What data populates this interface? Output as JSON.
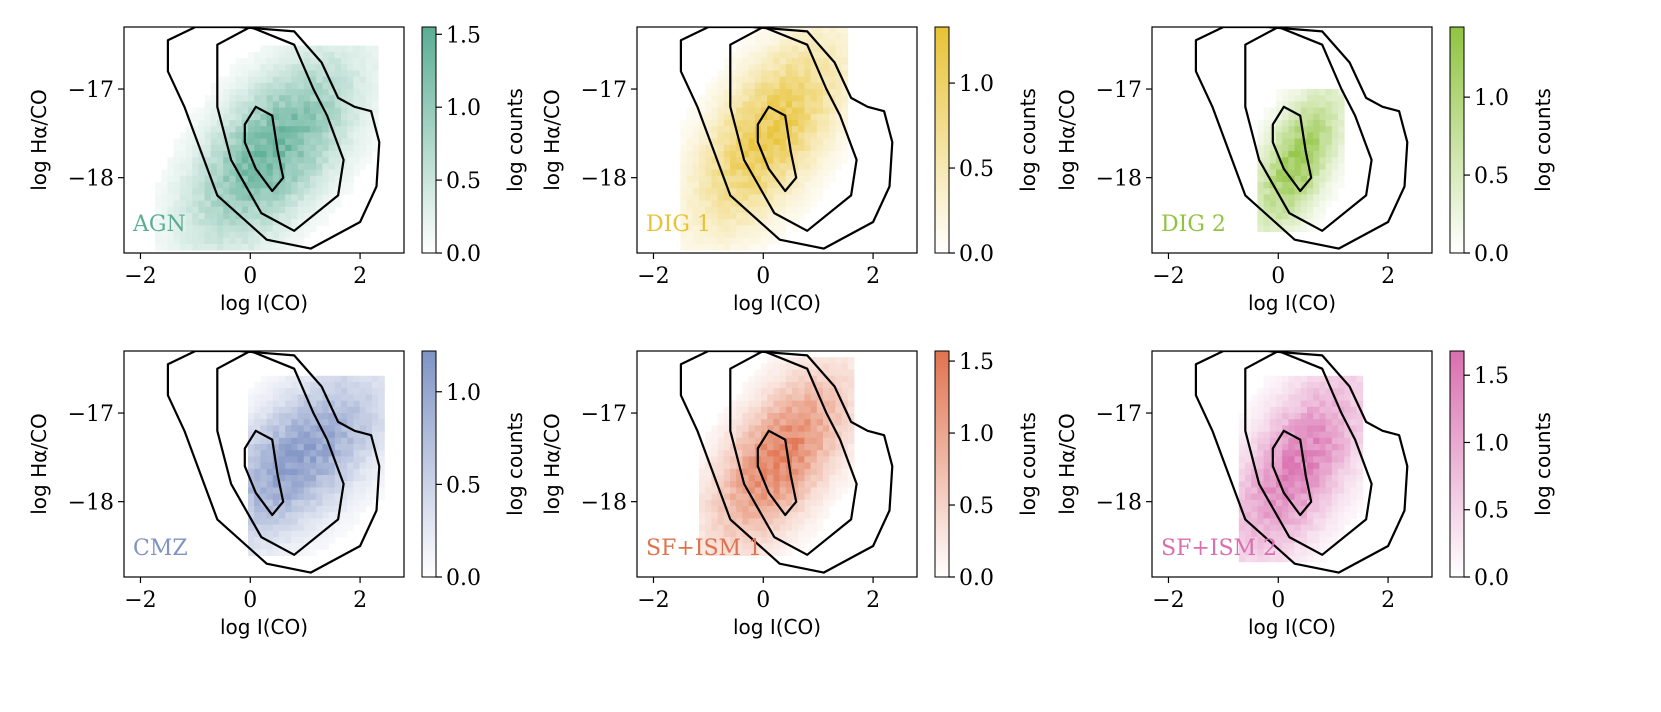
{
  "chart_data": [
    {
      "type": "heatmap",
      "label": "AGN",
      "color": "#5aad93",
      "xlabel": "log I(CO)",
      "ylabel": "log Hα/CO",
      "xlim": [
        -2.3,
        2.8
      ],
      "ylim": [
        -18.85,
        -16.3
      ],
      "xticks": [
        -2,
        0,
        2
      ],
      "xtick_labels": [
        "−2",
        "0",
        "2"
      ],
      "yticks": [
        -17,
        -18
      ],
      "ytick_labels": [
        "−17",
        "−18"
      ],
      "colorbar": {
        "label": "log counts",
        "ticks": [
          0.0,
          0.5,
          1.0,
          1.5
        ],
        "tick_labels": [
          "0.0",
          "0.5",
          "1.0",
          "1.5"
        ],
        "max": 1.55
      },
      "density_peak": {
        "x": 0.4,
        "y": -17.7
      },
      "density_spread": {
        "x": 0.85,
        "y": 0.6
      },
      "density_extent": {
        "x": [
          -1.7,
          2.3
        ],
        "y": [
          -18.8,
          -16.5
        ]
      },
      "grid": false
    },
    {
      "type": "heatmap",
      "label": "DIG 1",
      "color": "#e8c234",
      "xlabel": "log I(CO)",
      "ylabel": "log Hα/CO",
      "xlim": [
        -2.3,
        2.8
      ],
      "ylim": [
        -18.85,
        -16.3
      ],
      "xticks": [
        -2,
        0,
        2
      ],
      "xtick_labels": [
        "−2",
        "0",
        "2"
      ],
      "yticks": [
        -17,
        -18
      ],
      "ytick_labels": [
        "−17",
        "−18"
      ],
      "colorbar": {
        "label": "log counts",
        "ticks": [
          0.0,
          0.5,
          1.0
        ],
        "tick_labels": [
          "0.0",
          "0.5",
          "1.0"
        ],
        "max": 1.33
      },
      "density_peak": {
        "x": 0.1,
        "y": -17.5
      },
      "density_spread": {
        "x": 0.75,
        "y": 0.6
      },
      "density_extent": {
        "x": [
          -1.5,
          1.5
        ],
        "y": [
          -18.8,
          -16.3
        ]
      },
      "grid": false
    },
    {
      "type": "heatmap",
      "label": "DIG 2",
      "color": "#8fc43f",
      "xlabel": "log I(CO)",
      "ylabel": "log Hα/CO",
      "xlim": [
        -2.3,
        2.8
      ],
      "ylim": [
        -18.85,
        -16.3
      ],
      "xticks": [
        -2,
        0,
        2
      ],
      "xtick_labels": [
        "−2",
        "0",
        "2"
      ],
      "yticks": [
        -17,
        -18
      ],
      "ytick_labels": [
        "−17",
        "−18"
      ],
      "colorbar": {
        "label": "log counts",
        "ticks": [
          0.0,
          0.5,
          1.0
        ],
        "tick_labels": [
          "0.0",
          "0.5",
          "1.0"
        ],
        "max": 1.45
      },
      "density_peak": {
        "x": 0.35,
        "y": -17.8
      },
      "density_spread": {
        "x": 0.45,
        "y": 0.45
      },
      "density_extent": {
        "x": [
          -0.4,
          1.2
        ],
        "y": [
          -18.6,
          -17.0
        ]
      },
      "grid": false
    },
    {
      "type": "heatmap",
      "label": "CMZ",
      "color": "#7f93c4",
      "xlabel": "log I(CO)",
      "ylabel": "log Hα/CO",
      "xlim": [
        -2.3,
        2.8
      ],
      "ylim": [
        -18.85,
        -16.3
      ],
      "xticks": [
        -2,
        0,
        2
      ],
      "xtick_labels": [
        "−2",
        "0",
        "2"
      ],
      "yticks": [
        -17,
        -18
      ],
      "ytick_labels": [
        "−17",
        "−18"
      ],
      "colorbar": {
        "label": "log counts",
        "ticks": [
          0.0,
          0.5,
          1.0
        ],
        "tick_labels": [
          "0.0",
          "0.5",
          "1.0"
        ],
        "max": 1.22
      },
      "density_peak": {
        "x": 0.9,
        "y": -17.5
      },
      "density_spread": {
        "x": 0.9,
        "y": 0.55
      },
      "density_extent": {
        "x": [
          0.0,
          2.4
        ],
        "y": [
          -18.6,
          -16.6
        ]
      },
      "grid": false
    },
    {
      "type": "heatmap",
      "label": "SF+ISM 1",
      "color": "#e0734f",
      "xlabel": "log I(CO)",
      "ylabel": "log Hα/CO",
      "xlim": [
        -2.3,
        2.8
      ],
      "ylim": [
        -18.85,
        -16.3
      ],
      "xticks": [
        -2,
        0,
        2
      ],
      "xtick_labels": [
        "−2",
        "0",
        "2"
      ],
      "yticks": [
        -17,
        -18
      ],
      "ytick_labels": [
        "−17",
        "−18"
      ],
      "colorbar": {
        "label": "log counts",
        "ticks": [
          0.0,
          0.5,
          1.0,
          1.5
        ],
        "tick_labels": [
          "0.0",
          "0.5",
          "1.0",
          "1.5"
        ],
        "max": 1.57
      },
      "density_peak": {
        "x": 0.3,
        "y": -17.5
      },
      "density_spread": {
        "x": 0.7,
        "y": 0.55
      },
      "density_extent": {
        "x": [
          -1.2,
          1.6
        ],
        "y": [
          -18.6,
          -16.4
        ]
      },
      "grid": false
    },
    {
      "type": "heatmap",
      "label": "SF+ISM 2",
      "color": "#d96fb0",
      "xlabel": "log I(CO)",
      "ylabel": "log Hα/CO",
      "xlim": [
        -2.3,
        2.8
      ],
      "ylim": [
        -18.85,
        -16.3
      ],
      "xticks": [
        -2,
        0,
        2
      ],
      "xtick_labels": [
        "−2",
        "0",
        "2"
      ],
      "yticks": [
        -17,
        -18
      ],
      "ytick_labels": [
        "−17",
        "−18"
      ],
      "colorbar": {
        "label": "log counts",
        "ticks": [
          0.0,
          0.5,
          1.0,
          1.5
        ],
        "tick_labels": [
          "0.0",
          "0.5",
          "1.0",
          "1.5"
        ],
        "max": 1.68
      },
      "density_peak": {
        "x": 0.35,
        "y": -17.6
      },
      "density_spread": {
        "x": 0.7,
        "y": 0.6
      },
      "density_extent": {
        "x": [
          -0.7,
          1.5
        ],
        "y": [
          -18.7,
          -16.6
        ]
      },
      "grid": false
    }
  ],
  "contours": {
    "outer": [
      [
        -1.5,
        -16.45
      ],
      [
        -1.0,
        -16.3
      ],
      [
        -0.2,
        -16.3
      ],
      [
        0.8,
        -16.35
      ],
      [
        1.3,
        -16.7
      ],
      [
        1.6,
        -17.1
      ],
      [
        1.9,
        -17.2
      ],
      [
        2.2,
        -17.25
      ],
      [
        2.35,
        -17.6
      ],
      [
        2.3,
        -18.1
      ],
      [
        2.0,
        -18.5
      ],
      [
        1.1,
        -18.8
      ],
      [
        0.3,
        -18.7
      ],
      [
        -0.6,
        -18.2
      ],
      [
        -1.2,
        -17.2
      ],
      [
        -1.5,
        -16.8
      ]
    ],
    "middle": [
      [
        -0.6,
        -16.5
      ],
      [
        0.0,
        -16.3
      ],
      [
        0.8,
        -16.5
      ],
      [
        1.15,
        -17.0
      ],
      [
        1.4,
        -17.3
      ],
      [
        1.7,
        -17.8
      ],
      [
        1.6,
        -18.2
      ],
      [
        0.8,
        -18.6
      ],
      [
        0.2,
        -18.4
      ],
      [
        -0.35,
        -17.8
      ],
      [
        -0.6,
        -17.2
      ]
    ],
    "inner": [
      [
        -0.1,
        -17.4
      ],
      [
        0.1,
        -17.2
      ],
      [
        0.4,
        -17.3
      ],
      [
        0.5,
        -17.7
      ],
      [
        0.6,
        -18.0
      ],
      [
        0.4,
        -18.15
      ],
      [
        0.1,
        -17.9
      ],
      [
        -0.1,
        -17.6
      ]
    ]
  }
}
